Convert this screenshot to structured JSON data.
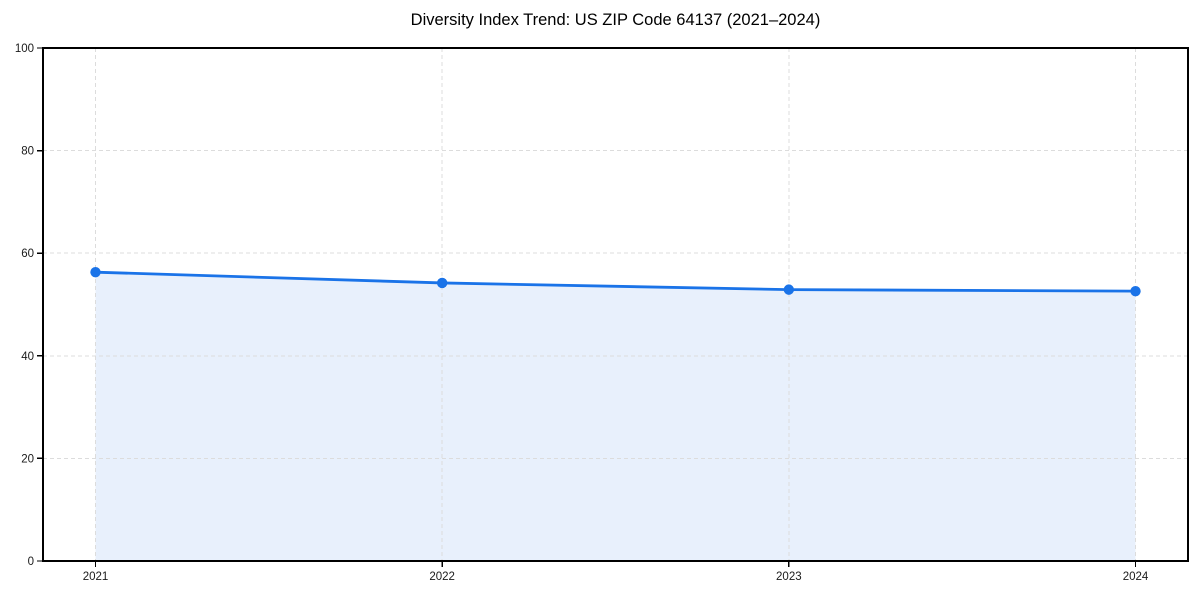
{
  "chart_data": {
    "type": "line",
    "title": "Diversity Index Trend: US ZIP Code 64137 (2021–2024)",
    "categories": [
      "2021",
      "2022",
      "2023",
      "2024"
    ],
    "series": [
      {
        "name": "Diversity Index",
        "values": [
          56.3,
          54.2,
          52.9,
          52.6
        ]
      }
    ],
    "xlabel": "",
    "ylabel": "",
    "ylim": [
      0,
      100
    ],
    "yticks": [
      0,
      20,
      40,
      60,
      80,
      100
    ],
    "ytick_labels": [
      "0",
      "20",
      "40",
      "60",
      "80",
      "100"
    ],
    "grid": "dashed-both-axes",
    "legend": "none",
    "marker": "circle",
    "area_fill": true,
    "colors": {
      "line": "#1a73e8",
      "marker": "#1a73e8",
      "area": "#e8f0fc",
      "grid": "#dcdcdc",
      "spine": "#000000",
      "tick_label": "#1a1a1a",
      "title": "#000000",
      "background": "#ffffff"
    }
  }
}
